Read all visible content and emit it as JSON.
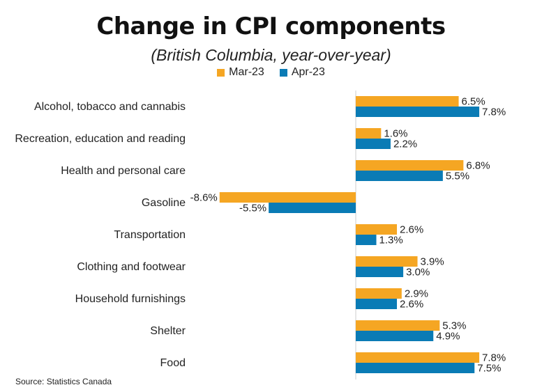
{
  "colors": {
    "mar": "#F5A623",
    "apr": "#0A7BB5",
    "axis": "#cccccc"
  },
  "source": "Source: Statistics Canada",
  "chart_data": {
    "type": "bar",
    "orientation": "horizontal",
    "title": "Change in CPI components",
    "subtitle": "(British Columbia, year-over-year)",
    "xlabel": "",
    "ylabel": "",
    "grid": false,
    "legend_position": "top-center",
    "xlim": [
      -10,
      10
    ],
    "categories": [
      "Alcohol, tobacco and cannabis",
      "Recreation, education and reading",
      "Health and personal care",
      "Gasoline",
      "Transportation",
      "Clothing and footwear",
      "Household furnishings",
      "Shelter",
      "Food"
    ],
    "series": [
      {
        "name": "Mar-23",
        "values": [
          6.5,
          1.6,
          6.8,
          -8.6,
          2.6,
          3.9,
          2.9,
          5.3,
          7.8
        ],
        "labels": [
          "6.5%",
          "1.6%",
          "6.8%",
          "-8.6%",
          "2.6%",
          "3.9%",
          "2.9%",
          "5.3%",
          "7.8%"
        ]
      },
      {
        "name": "Apr-23",
        "values": [
          7.8,
          2.2,
          5.5,
          -5.5,
          1.3,
          3.0,
          2.6,
          4.9,
          7.5
        ],
        "labels": [
          "7.8%",
          "2.2%",
          "5.5%",
          "-5.5%",
          "1.3%",
          "3.0%",
          "2.6%",
          "4.9%",
          "7.5%"
        ]
      }
    ]
  }
}
